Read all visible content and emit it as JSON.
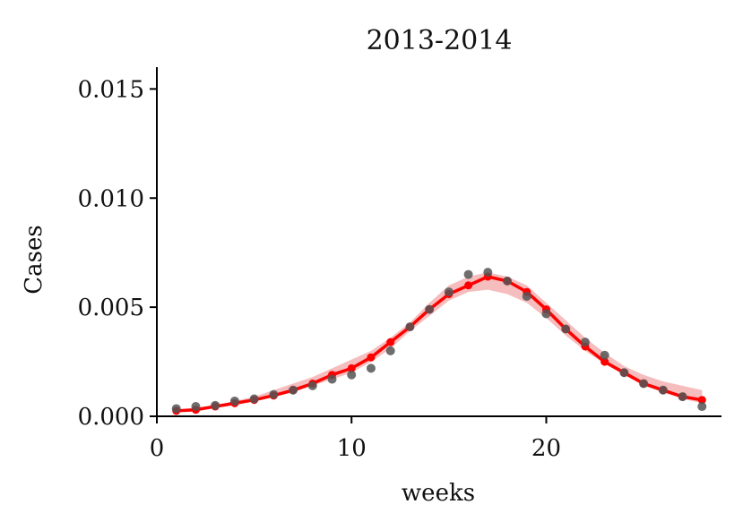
{
  "chart_data": {
    "type": "line",
    "title": "2013-2014",
    "xlabel": "weeks",
    "ylabel": "Cases",
    "xlim": [
      0,
      29
    ],
    "ylim": [
      0,
      0.016
    ],
    "xticks": [
      "0",
      "10",
      "20"
    ],
    "yticks": [
      "0.000",
      "0.005",
      "0.010",
      "0.015"
    ],
    "grid": false,
    "colors": {
      "observed": "#555555",
      "fit": "#ff0000",
      "band": "#f4b6b6"
    },
    "observed": {
      "x": [
        1,
        2,
        3,
        4,
        5,
        6,
        7,
        8,
        9,
        10,
        11,
        12,
        13,
        14,
        15,
        16,
        17,
        18,
        19,
        20,
        21,
        22,
        23,
        24,
        25,
        26,
        27,
        28
      ],
      "y": [
        0.00035,
        0.00045,
        0.0005,
        0.0007,
        0.0008,
        0.001,
        0.0012,
        0.0014,
        0.0017,
        0.0019,
        0.0022,
        0.003,
        0.0041,
        0.0049,
        0.0057,
        0.0065,
        0.0066,
        0.0062,
        0.0055,
        0.0047,
        0.004,
        0.0034,
        0.0028,
        0.002,
        0.0015,
        0.0012,
        0.0009,
        0.00045
      ]
    },
    "fit": {
      "x": [
        1,
        2,
        3,
        4,
        5,
        6,
        7,
        8,
        9,
        10,
        11,
        12,
        13,
        14,
        15,
        16,
        17,
        18,
        19,
        20,
        21,
        22,
        23,
        24,
        25,
        26,
        27,
        28
      ],
      "y": [
        0.00025,
        0.0003,
        0.00045,
        0.0006,
        0.00075,
        0.00095,
        0.0012,
        0.0015,
        0.0019,
        0.0022,
        0.0027,
        0.0034,
        0.0041,
        0.0049,
        0.0056,
        0.006,
        0.0064,
        0.0062,
        0.0057,
        0.0049,
        0.004,
        0.0032,
        0.0025,
        0.002,
        0.0015,
        0.0012,
        0.0009,
        0.00075
      ]
    },
    "band": {
      "x": [
        1,
        2,
        3,
        4,
        5,
        6,
        7,
        8,
        9,
        10,
        11,
        12,
        13,
        14,
        15,
        16,
        17,
        18,
        19,
        20,
        21,
        22,
        23,
        24,
        25,
        26,
        27,
        28
      ],
      "lower": [
        0.0002,
        0.0003,
        0.0004,
        0.0005,
        0.0007,
        0.0009,
        0.0011,
        0.0014,
        0.0017,
        0.002,
        0.0025,
        0.0031,
        0.0039,
        0.0046,
        0.0053,
        0.0057,
        0.0058,
        0.0056,
        0.0052,
        0.0045,
        0.0037,
        0.003,
        0.0024,
        0.0019,
        0.0014,
        0.0011,
        0.0008,
        0.0006
      ],
      "upper": [
        0.0003,
        0.0004,
        0.0005,
        0.0007,
        0.0009,
        0.0012,
        0.0015,
        0.0018,
        0.0022,
        0.0026,
        0.003,
        0.0036,
        0.0043,
        0.0052,
        0.006,
        0.0064,
        0.0066,
        0.0064,
        0.006,
        0.0052,
        0.0044,
        0.0036,
        0.0029,
        0.0023,
        0.0019,
        0.0016,
        0.0014,
        0.0012
      ]
    }
  }
}
